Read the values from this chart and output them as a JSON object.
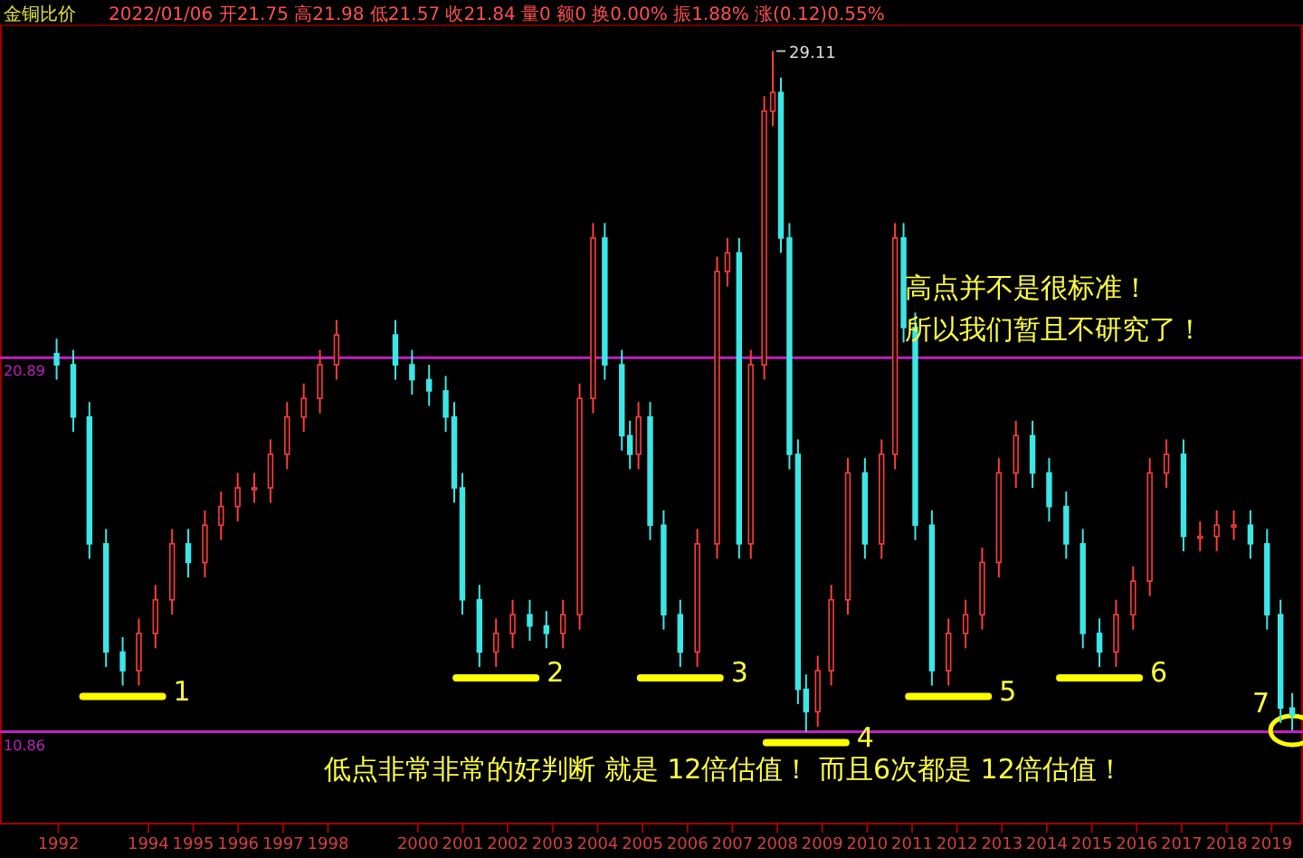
{
  "chart_data": {
    "type": "candlestick",
    "title": "金铜比价",
    "subtitle": "2022/01/06 开21.75 高21.98 低21.57 收21.84 量0 额0 换0.00% 振1.88% 涨(0.12)0.55%",
    "x": [
      1992.46,
      1992.83,
      1993.19,
      1993.56,
      1993.93,
      1994.29,
      1994.66,
      1995.03,
      1995.39,
      1995.76,
      1996.12,
      1996.49,
      1996.86,
      1997.22,
      1997.59,
      1997.96,
      1998.32,
      1998.69,
      2000.0,
      2000.37,
      2000.75,
      2001.12,
      2001.31,
      2001.49,
      2001.87,
      2002.24,
      2002.61,
      2002.99,
      2003.36,
      2003.73,
      2004.1,
      2004.4,
      2004.66,
      2005.04,
      2005.22,
      2005.41,
      2005.67,
      2005.97,
      2006.34,
      2006.72,
      2007.16,
      2007.39,
      2007.65,
      2007.91,
      2008.21,
      2008.4,
      2008.58,
      2008.77,
      2008.96,
      2009.14,
      2009.4,
      2009.7,
      2010.07,
      2010.45,
      2010.82,
      2011.12,
      2011.31,
      2011.57,
      2011.94,
      2012.31,
      2012.69,
      2013.06,
      2013.43,
      2013.81,
      2014.18,
      2014.55,
      2014.93,
      2015.3,
      2015.67,
      2016.04,
      2016.42,
      2016.79,
      2017.16,
      2017.54,
      2017.91,
      2018.28,
      2018.66,
      2019.03,
      2019.4,
      2019.7,
      2019.96
    ],
    "ohlc": [
      [
        21.0,
        21.4,
        20.3,
        20.7
      ],
      [
        20.7,
        21.1,
        18.9,
        19.3
      ],
      [
        19.3,
        19.7,
        15.5,
        15.9
      ],
      [
        15.9,
        16.3,
        12.6,
        13.0
      ],
      [
        13.0,
        13.4,
        12.1,
        12.5
      ],
      [
        12.5,
        13.9,
        12.1,
        13.5
      ],
      [
        13.5,
        14.8,
        13.1,
        14.4
      ],
      [
        14.4,
        16.3,
        14.0,
        15.9
      ],
      [
        15.9,
        16.3,
        15.0,
        15.4
      ],
      [
        15.4,
        16.8,
        15.0,
        16.4
      ],
      [
        16.4,
        17.3,
        16.0,
        16.9
      ],
      [
        16.9,
        17.8,
        16.5,
        17.4
      ],
      [
        17.4,
        17.8,
        17.0,
        17.4
      ],
      [
        17.4,
        18.7,
        17.0,
        18.3
      ],
      [
        18.3,
        19.7,
        17.9,
        19.3
      ],
      [
        19.3,
        20.2,
        18.9,
        19.8
      ],
      [
        19.8,
        21.1,
        19.4,
        20.7
      ],
      [
        20.7,
        21.9,
        20.3,
        21.5
      ],
      [
        21.5,
        21.9,
        20.3,
        20.7
      ],
      [
        20.7,
        21.1,
        19.9,
        20.3
      ],
      [
        20.3,
        20.7,
        19.6,
        20.0
      ],
      [
        20.0,
        20.4,
        18.9,
        19.3
      ],
      [
        19.3,
        19.7,
        17.0,
        17.4
      ],
      [
        17.4,
        17.8,
        14.0,
        14.4
      ],
      [
        14.4,
        14.8,
        12.6,
        13.0
      ],
      [
        13.0,
        13.9,
        12.6,
        13.5
      ],
      [
        13.5,
        14.4,
        13.1,
        14.0
      ],
      [
        14.0,
        14.4,
        13.3,
        13.7
      ],
      [
        13.7,
        14.1,
        13.1,
        13.5
      ],
      [
        13.5,
        14.4,
        13.1,
        14.0
      ],
      [
        14.0,
        20.2,
        13.6,
        19.8
      ],
      [
        19.8,
        24.5,
        19.4,
        24.1
      ],
      [
        24.1,
        24.5,
        20.3,
        20.7
      ],
      [
        20.7,
        21.1,
        18.4,
        18.8
      ],
      [
        18.8,
        19.2,
        17.9,
        18.3
      ],
      [
        18.3,
        19.7,
        17.9,
        19.3
      ],
      [
        19.3,
        19.7,
        16.0,
        16.4
      ],
      [
        16.4,
        16.8,
        13.6,
        14.0
      ],
      [
        14.0,
        14.4,
        12.6,
        13.0
      ],
      [
        13.0,
        16.3,
        12.6,
        15.9
      ],
      [
        15.9,
        23.6,
        15.5,
        23.2
      ],
      [
        23.2,
        24.1,
        22.8,
        23.7
      ],
      [
        23.7,
        24.1,
        15.5,
        15.9
      ],
      [
        15.9,
        21.1,
        15.5,
        20.7
      ],
      [
        20.7,
        27.9,
        20.3,
        27.5
      ],
      [
        27.5,
        29.11,
        27.1,
        28.0
      ],
      [
        28.0,
        28.4,
        23.7,
        24.1
      ],
      [
        24.1,
        24.5,
        17.9,
        18.3
      ],
      [
        18.3,
        18.7,
        11.6,
        12.0
      ],
      [
        12.0,
        12.4,
        10.86,
        11.4
      ],
      [
        11.4,
        12.9,
        11.0,
        12.5
      ],
      [
        12.5,
        14.8,
        12.1,
        14.4
      ],
      [
        14.4,
        18.2,
        14.0,
        17.8
      ],
      [
        17.8,
        18.2,
        15.5,
        15.9
      ],
      [
        15.9,
        18.7,
        15.5,
        18.3
      ],
      [
        18.3,
        24.5,
        17.9,
        24.1
      ],
      [
        24.1,
        24.5,
        21.3,
        21.7
      ],
      [
        21.7,
        22.1,
        16.0,
        16.4
      ],
      [
        16.4,
        16.8,
        12.1,
        12.5
      ],
      [
        12.5,
        13.9,
        12.1,
        13.5
      ],
      [
        13.5,
        14.4,
        13.1,
        14.0
      ],
      [
        14.0,
        15.8,
        13.6,
        15.4
      ],
      [
        15.4,
        18.2,
        15.0,
        17.8
      ],
      [
        17.8,
        19.2,
        17.4,
        18.8
      ],
      [
        18.8,
        19.2,
        17.4,
        17.8
      ],
      [
        17.8,
        18.2,
        16.5,
        16.9
      ],
      [
        16.9,
        17.3,
        15.5,
        15.9
      ],
      [
        15.9,
        16.3,
        13.1,
        13.5
      ],
      [
        13.5,
        13.9,
        12.6,
        13.0
      ],
      [
        13.0,
        14.4,
        12.6,
        14.0
      ],
      [
        14.0,
        15.3,
        13.6,
        14.9
      ],
      [
        14.9,
        18.2,
        14.5,
        17.8
      ],
      [
        17.8,
        18.7,
        17.4,
        18.3
      ],
      [
        18.3,
        18.7,
        15.7,
        16.1
      ],
      [
        16.1,
        16.5,
        15.7,
        16.1
      ],
      [
        16.1,
        16.8,
        15.7,
        16.4
      ],
      [
        16.4,
        16.8,
        16.0,
        16.4
      ],
      [
        16.4,
        16.8,
        15.5,
        15.9
      ],
      [
        15.9,
        16.3,
        13.6,
        14.0
      ],
      [
        14.0,
        14.4,
        11.1,
        11.5
      ],
      [
        11.5,
        11.9,
        10.9,
        11.3
      ]
    ],
    "xlim": [
      1991.2,
      2020.2
    ],
    "xticks": [
      {
        "value": 1992.5,
        "label": "1992"
      },
      {
        "value": 1994.5,
        "label": "1994"
      },
      {
        "value": 1995.5,
        "label": "1995"
      },
      {
        "value": 1996.5,
        "label": "1996"
      },
      {
        "value": 1997.5,
        "label": "1997"
      },
      {
        "value": 1998.5,
        "label": "1998"
      },
      {
        "value": 2000.5,
        "label": "2000"
      },
      {
        "value": 2001.5,
        "label": "2001"
      },
      {
        "value": 2002.5,
        "label": "2002"
      },
      {
        "value": 2003.5,
        "label": "2003"
      },
      {
        "value": 2004.5,
        "label": "2004"
      },
      {
        "value": 2005.5,
        "label": "2005"
      },
      {
        "value": 2006.5,
        "label": "2006"
      },
      {
        "value": 2007.5,
        "label": "2007"
      },
      {
        "value": 2008.5,
        "label": "2008"
      },
      {
        "value": 2009.5,
        "label": "2009"
      },
      {
        "value": 2010.5,
        "label": "2010"
      },
      {
        "value": 2011.5,
        "label": "2011"
      },
      {
        "value": 2012.5,
        "label": "2012"
      },
      {
        "value": 2013.5,
        "label": "2013"
      },
      {
        "value": 2014.5,
        "label": "2014"
      },
      {
        "value": 2015.5,
        "label": "2015"
      },
      {
        "value": 2016.5,
        "label": "2016"
      },
      {
        "value": 2017.5,
        "label": "2017"
      },
      {
        "value": 2018.5,
        "label": "2018"
      },
      {
        "value": 2019.5,
        "label": "2019"
      }
    ],
    "ylim": [
      8.4,
      29.8
    ],
    "tick_labels": "x",
    "ref_lines": [
      {
        "axis": "y",
        "value": 20.89,
        "label": "20.89",
        "color": "#c020c0"
      },
      {
        "axis": "y",
        "value": 10.86,
        "label": "10.86",
        "color": "#c020c0"
      }
    ],
    "annotations": [
      {
        "text": "29.11",
        "x": 2008.4,
        "y": 29.11
      },
      {
        "text": "1",
        "x": 1993.93,
        "y": 12.1
      },
      {
        "text": "2",
        "x": 2002.24,
        "y": 12.6
      },
      {
        "text": "3",
        "x": 2006.34,
        "y": 12.6
      },
      {
        "text": "4",
        "x": 2009.14,
        "y": 10.86
      },
      {
        "text": "5",
        "x": 2012.31,
        "y": 12.1
      },
      {
        "text": "6",
        "x": 2015.67,
        "y": 12.6
      },
      {
        "text": "7",
        "x": 2019.96,
        "y": 10.9
      },
      "高点并不是很标准！",
      "所以我们暂且不研究了！",
      "低点非常非常的好判断  就是 12倍估值！  而且6次都是 12倍估值！"
    ]
  }
}
